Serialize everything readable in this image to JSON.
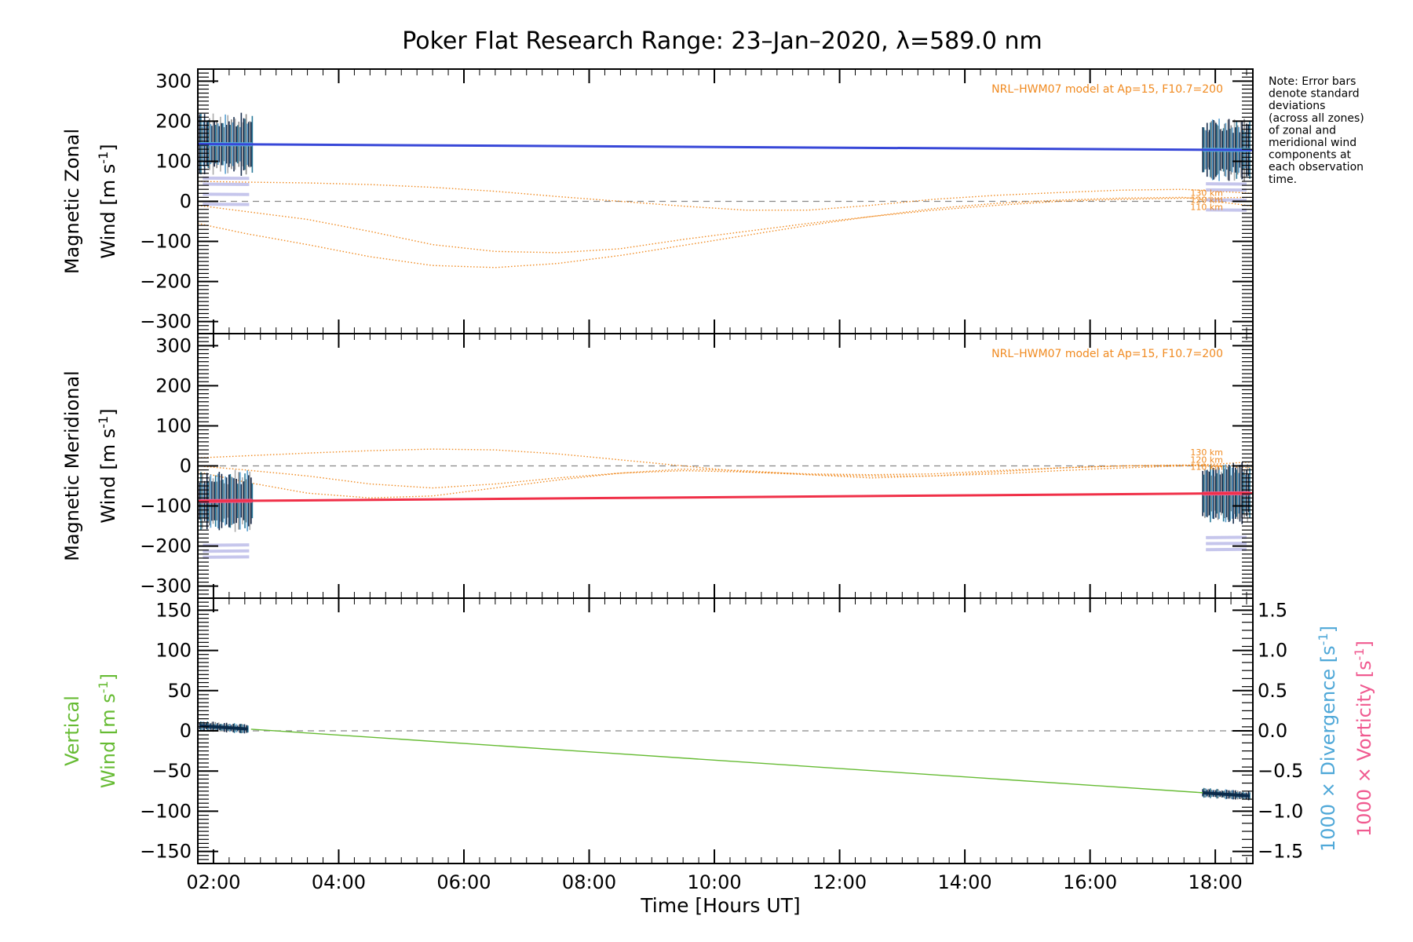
{
  "chart_data": {
    "type": "line",
    "title": "Poker Flat Research Range: 23–Jan–2020, λ=589.0 nm",
    "xlabel": "Time [Hours UT]",
    "xlim": [
      1.75,
      18.6
    ],
    "x_ticks": [
      "02:00",
      "04:00",
      "06:00",
      "08:00",
      "10:00",
      "12:00",
      "14:00",
      "16:00",
      "18:00"
    ],
    "x_tick_hours": [
      2,
      4,
      6,
      8,
      10,
      12,
      14,
      16,
      18
    ],
    "note": [
      "Note: Error bars",
      "denote standard",
      "deviations",
      "(across all zones)",
      "of zonal and",
      "meridional wind",
      "components at",
      "each observation",
      "time."
    ],
    "colors": {
      "zonal": "#3848d8",
      "zonal_obs": "#58b8e0",
      "meridional": "#f03048",
      "meridional_obs": "#f05a90",
      "vertical": "#66bb33",
      "model": "#f08a20",
      "divergence": "#4fa8d8",
      "vorticity": "#f05a90"
    },
    "panels": [
      {
        "id": "zonal",
        "ylabel_line1": "Magnetic Zonal",
        "ylabel_line2": "Wind [m s",
        "ylabel_sup": "-1",
        "ylabel_close": "]",
        "ylim": [
          -330,
          330
        ],
        "y_ticks": [
          300,
          200,
          100,
          0,
          -100,
          -200,
          -300
        ],
        "model_label": "NRL–HWM07 model at Ap=15, F10.7=200",
        "altitude_labels": [
          "130 km",
          "120 km",
          "110 km"
        ],
        "series": [
          {
            "role": "wind",
            "x": [
              1.75,
              18.6
            ],
            "y": [
              143,
              128
            ]
          },
          {
            "role": "model",
            "x": [
              1.75,
              2.5,
              3.5,
              4.5,
              5.5,
              6.5,
              7.5,
              8.5,
              9.5,
              10.5,
              11.5,
              12.5,
              13.5,
              14.5,
              15.5,
              16.5,
              17.5,
              18.6
            ],
            "y": [
              -55,
              -80,
              -108,
              -138,
              -160,
              -165,
              -155,
              -135,
              -110,
              -85,
              -60,
              -38,
              -18,
              -5,
              3,
              8,
              10,
              -12
            ]
          },
          {
            "role": "model",
            "x": [
              1.75,
              2.5,
              3.5,
              4.5,
              5.5,
              6.5,
              7.5,
              8.5,
              9.5,
              10.5,
              11.5,
              12.5,
              13.5,
              14.5,
              15.5,
              16.5,
              17.5,
              18.6
            ],
            "y": [
              -10,
              -25,
              -45,
              -75,
              -108,
              -125,
              -128,
              -118,
              -95,
              -75,
              -55,
              -38,
              -22,
              -10,
              0,
              5,
              8,
              10
            ]
          },
          {
            "role": "model",
            "x": [
              1.75,
              2.5,
              3.5,
              4.5,
              5.5,
              6.5,
              7.5,
              8.5,
              9.5,
              10.5,
              11.5,
              12.5,
              13.5,
              14.5,
              15.5,
              16.5,
              17.5,
              18.6
            ],
            "y": [
              50,
              48,
              46,
              42,
              35,
              25,
              12,
              0,
              -12,
              -22,
              -22,
              -10,
              5,
              15,
              22,
              28,
              30,
              20
            ]
          }
        ]
      },
      {
        "id": "meridional",
        "ylabel_line1": "Magnetic Meridional",
        "ylabel_line2": "Wind [m s",
        "ylabel_sup": "-1",
        "ylabel_close": "]",
        "ylim": [
          -330,
          330
        ],
        "y_ticks": [
          300,
          200,
          100,
          0,
          -100,
          -200,
          -300
        ],
        "model_label": "NRL–HWM07 model at Ap=15, F10.7=200",
        "altitude_labels": [
          "130 km",
          "120 km",
          "110 km"
        ],
        "series": [
          {
            "role": "wind",
            "x": [
              1.75,
              18.6
            ],
            "y": [
              -88,
              -68
            ]
          },
          {
            "role": "model",
            "x": [
              1.75,
              2.5,
              3.5,
              4.5,
              5.5,
              6.5,
              7.5,
              8.5,
              9.5,
              10.5,
              11.5,
              12.5,
              13.5,
              14.5,
              15.5,
              16.5,
              17.5,
              18.6
            ],
            "y": [
              20,
              25,
              32,
              38,
              42,
              40,
              30,
              15,
              0,
              -15,
              -22,
              -25,
              -25,
              -20,
              -12,
              -5,
              0,
              10
            ]
          },
          {
            "role": "model",
            "x": [
              1.75,
              2.5,
              3.5,
              4.5,
              5.5,
              6.5,
              7.5,
              8.5,
              9.5,
              10.5,
              11.5,
              12.5,
              13.5,
              14.5,
              15.5,
              16.5,
              17.5,
              18.6
            ],
            "y": [
              -15,
              -40,
              -68,
              -80,
              -75,
              -55,
              -35,
              -18,
              -8,
              -12,
              -22,
              -30,
              -25,
              -15,
              -5,
              0,
              2,
              -5
            ]
          },
          {
            "role": "model",
            "x": [
              1.75,
              2.5,
              3.5,
              4.5,
              5.5,
              6.5,
              7.5,
              8.5,
              9.5,
              10.5,
              11.5,
              12.5,
              13.5,
              14.5,
              15.5,
              16.5,
              17.5,
              18.6
            ],
            "y": [
              0,
              -10,
              -25,
              -45,
              -55,
              -45,
              -30,
              -18,
              -12,
              -15,
              -20,
              -22,
              -20,
              -12,
              -5,
              0,
              2,
              0
            ]
          }
        ]
      },
      {
        "id": "vertical",
        "ylabel_line1": "Vertical",
        "ylabel_line2": "Wind [m s",
        "ylabel_sup": "-1",
        "ylabel_close": "]",
        "ylim": [
          -165,
          165
        ],
        "y_ticks": [
          150,
          100,
          50,
          0,
          -50,
          -100,
          -150
        ],
        "y2lim": [
          -1.65,
          1.65
        ],
        "y2_ticks": [
          1.5,
          1.0,
          0.5,
          0.0,
          -0.5,
          -1.0,
          -1.5
        ],
        "y2_tick_labels": [
          "1.5",
          "1.0",
          "0.5",
          "0.0",
          "−0.5",
          "−1.0",
          "−1.5"
        ],
        "y2label_div": "1000 × Divergence [s",
        "y2label_vor": "1000 × Vorticity [s",
        "series": [
          {
            "role": "wind",
            "x": [
              2.6,
              17.8
            ],
            "y": [
              2,
              -77
            ]
          }
        ]
      }
    ]
  }
}
